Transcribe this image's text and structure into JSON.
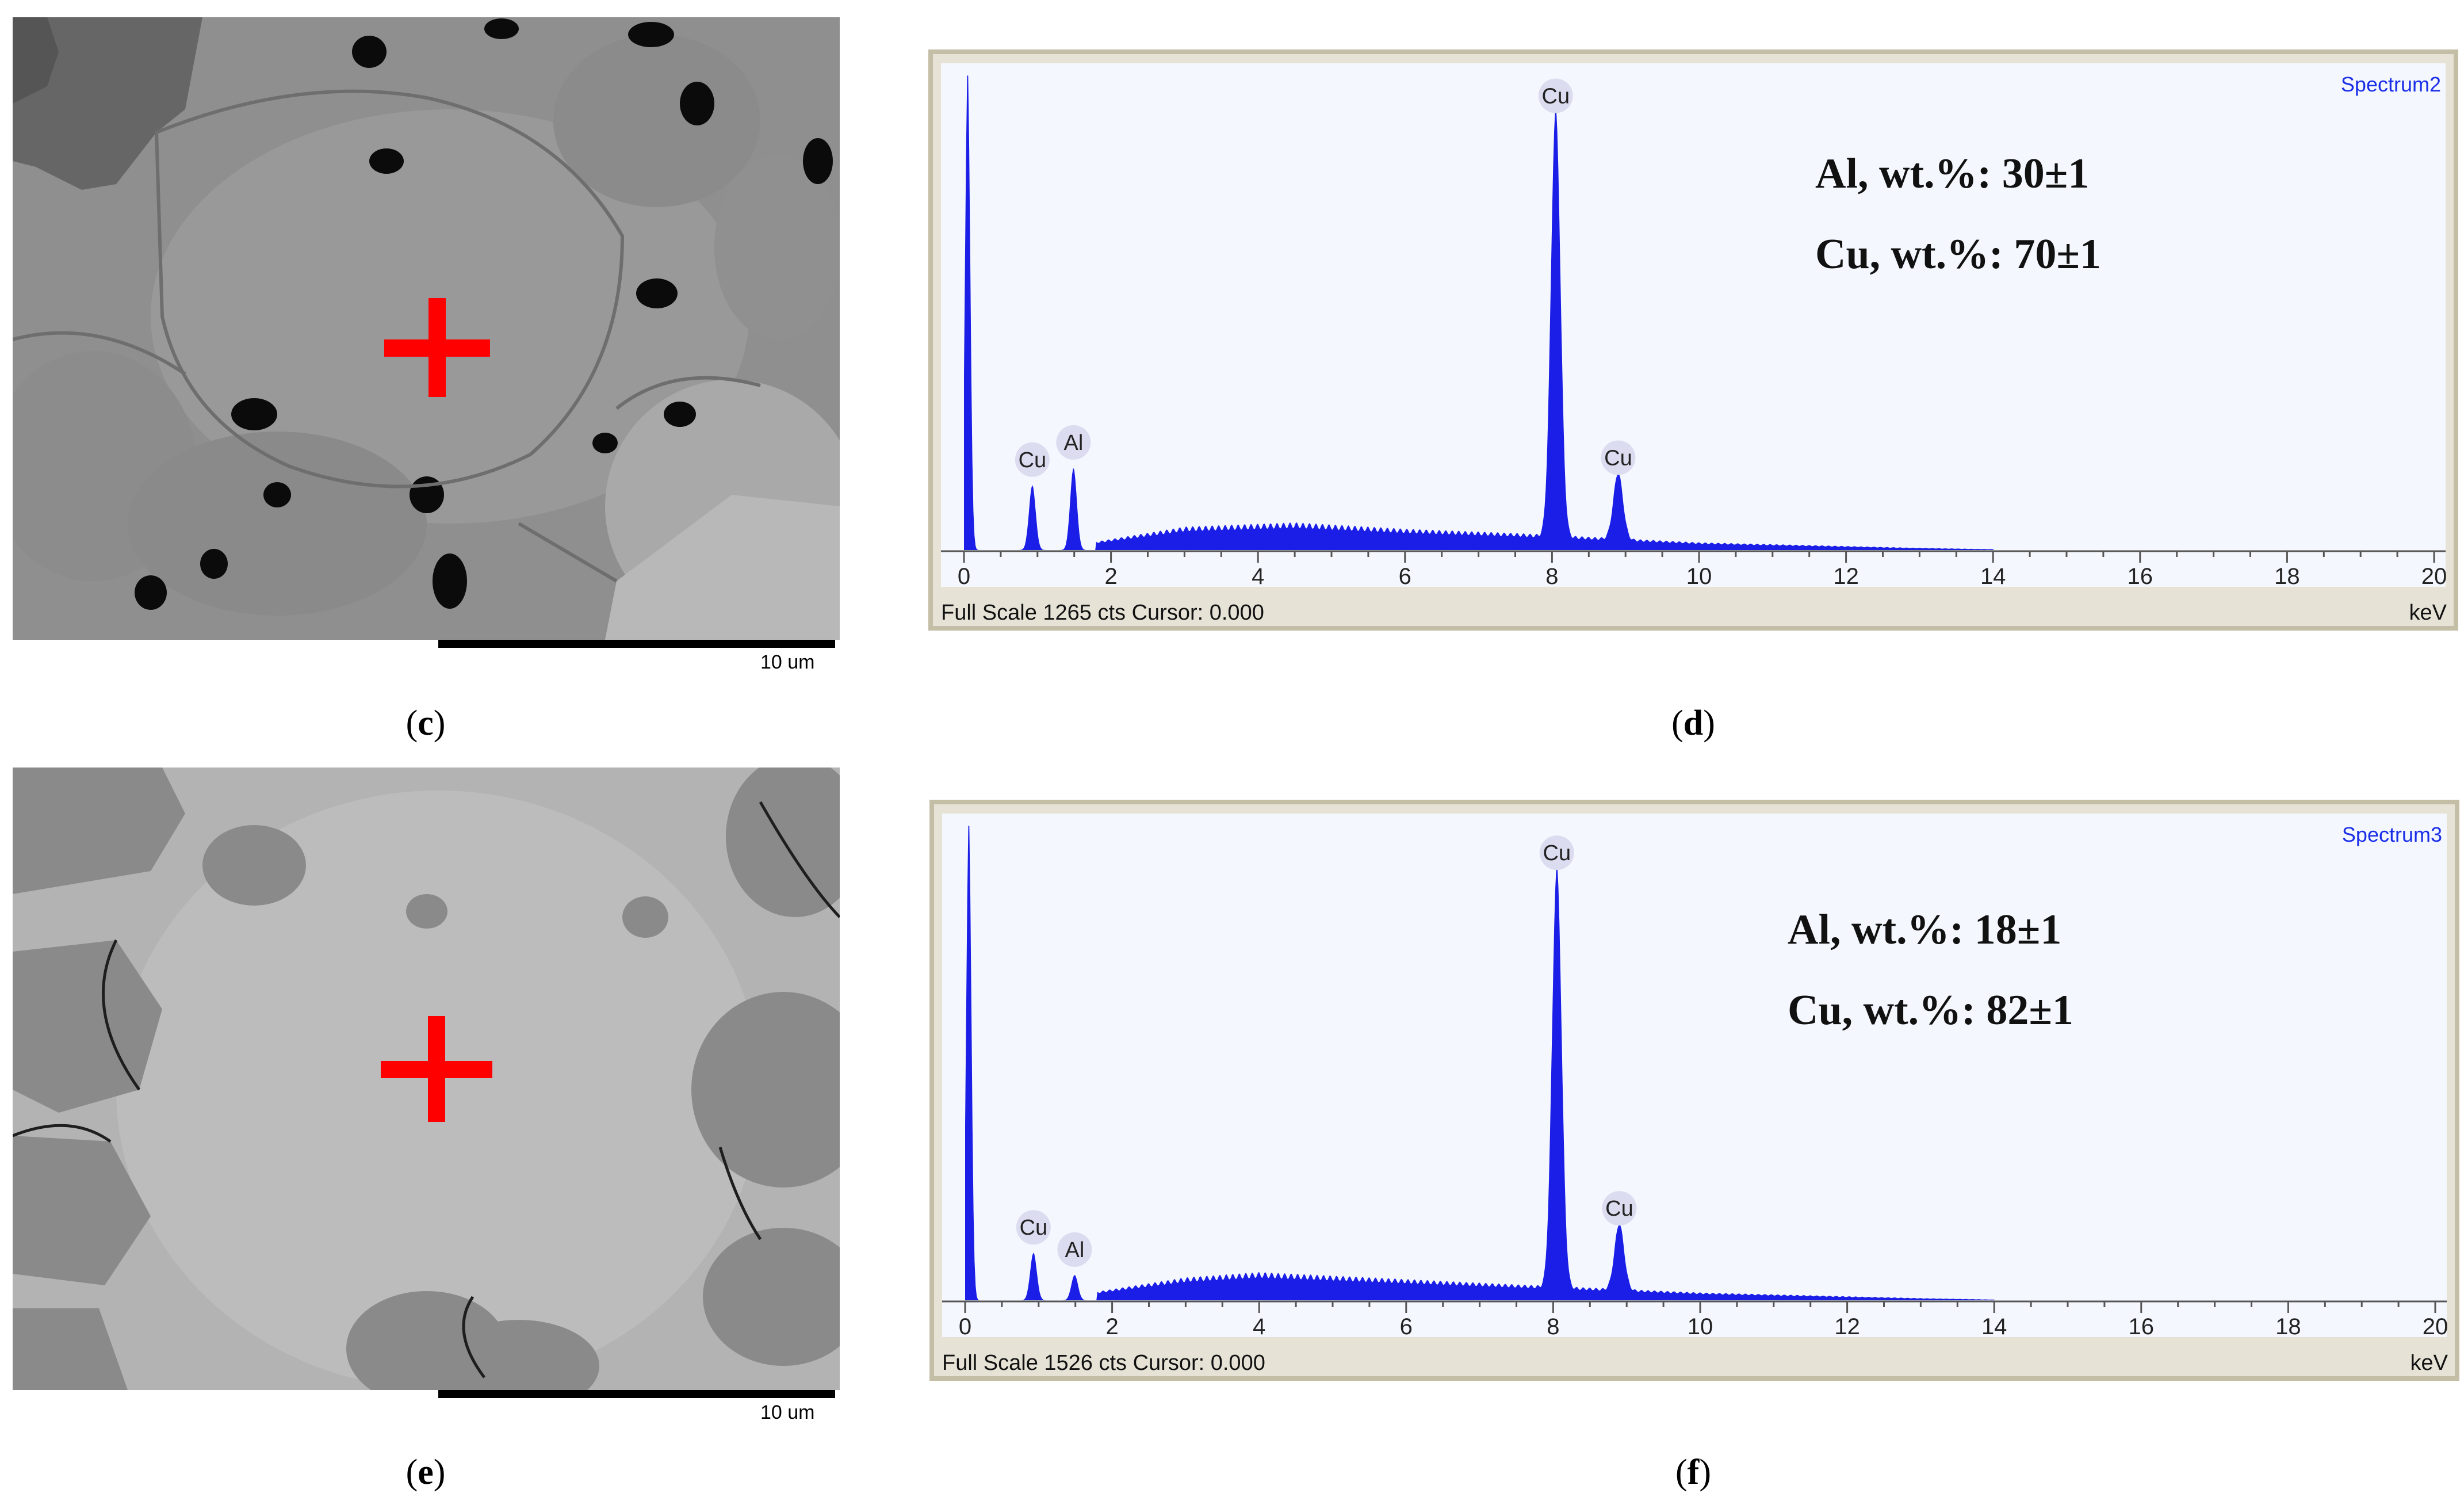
{
  "panels": [
    {
      "id": "c",
      "caption": "c",
      "scalebar_label": "10 um"
    },
    {
      "id": "d",
      "caption": "d",
      "spectrum_name": "Spectrum2",
      "footer": "Full Scale 1265 cts Cursor: 0.000",
      "unit": "keV",
      "composition": [
        "Al, wt.%: 30±1",
        "Cu, wt.%: 70±1"
      ]
    },
    {
      "id": "e",
      "caption": "e",
      "scalebar_label": "10 um"
    },
    {
      "id": "f",
      "caption": "f",
      "spectrum_name": "Spectrum3",
      "footer": "Full Scale 1526 cts Cursor: 0.000",
      "unit": "keV",
      "composition": [
        "Al, wt.%: 18±1",
        "Cu, wt.%: 82±1"
      ]
    }
  ],
  "colors": {
    "spectrum_fill": "#1a1ee6",
    "marker": "#ff0000",
    "peak_label_bg": "#dcdcf0"
  },
  "chart_data": [
    {
      "type": "area",
      "title": "Spectrum2",
      "xlabel": "keV",
      "xlim": [
        0,
        20
      ],
      "ylim": [
        0,
        1265
      ],
      "x_ticks": [
        0,
        2,
        4,
        6,
        8,
        10,
        12,
        14,
        16,
        18,
        20
      ],
      "peaks": [
        {
          "label": "",
          "x": 0.05,
          "y": 1265
        },
        {
          "label": "Cu",
          "x": 0.93,
          "y": 170
        },
        {
          "label": "Al",
          "x": 1.49,
          "y": 215
        },
        {
          "label": "Cu",
          "x": 8.05,
          "y": 1120
        },
        {
          "label": "Cu",
          "x": 8.9,
          "y": 175
        }
      ],
      "background": [
        [
          1.8,
          20
        ],
        [
          3,
          55
        ],
        [
          4.5,
          65
        ],
        [
          6,
          50
        ],
        [
          7.5,
          40
        ],
        [
          10,
          18
        ],
        [
          13,
          5
        ],
        [
          14,
          2
        ]
      ]
    },
    {
      "type": "area",
      "title": "Spectrum3",
      "xlabel": "keV",
      "xlim": [
        0,
        20
      ],
      "ylim": [
        0,
        1526
      ],
      "x_ticks": [
        0,
        2,
        4,
        6,
        8,
        10,
        12,
        14,
        16,
        18,
        20
      ],
      "peaks": [
        {
          "label": "",
          "x": 0.05,
          "y": 1526
        },
        {
          "label": "Cu",
          "x": 0.93,
          "y": 150
        },
        {
          "label": "Al",
          "x": 1.49,
          "y": 80
        },
        {
          "label": "Cu",
          "x": 8.05,
          "y": 1330
        },
        {
          "label": "Cu",
          "x": 8.9,
          "y": 210
        }
      ],
      "background": [
        [
          1.8,
          25
        ],
        [
          3,
          65
        ],
        [
          4,
          80
        ],
        [
          6,
          60
        ],
        [
          7.5,
          45
        ],
        [
          10,
          22
        ],
        [
          13,
          6
        ],
        [
          14,
          2
        ]
      ]
    }
  ]
}
